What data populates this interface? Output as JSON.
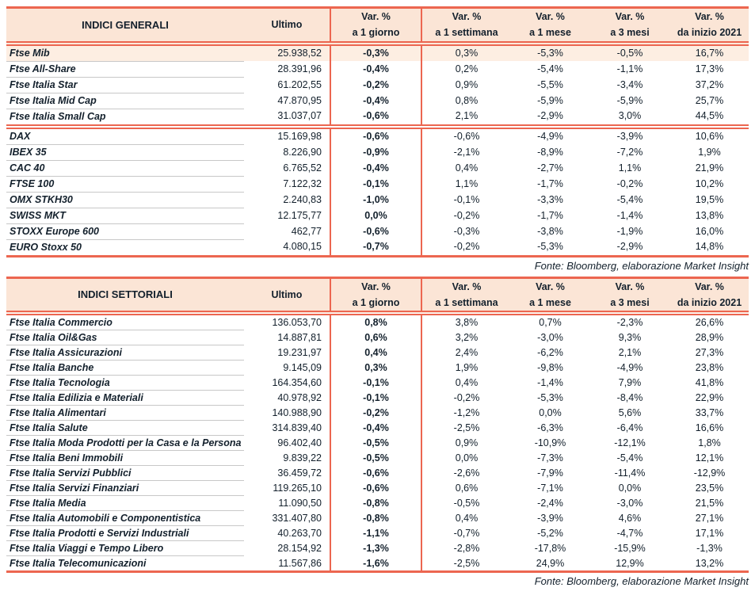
{
  "colors": {
    "accent_red": "#ec6650",
    "header_bg": "#fbe5d6",
    "highlight_row_bg": "#fdeee2",
    "separator_gray": "#c8c8c8",
    "text": "#13202c"
  },
  "columns": {
    "ultimo": "Ultimo",
    "var_label": "Var. %",
    "periods": [
      "a 1 giorno",
      "a 1 settimana",
      "a 1 mese",
      "a 3 mesi",
      "da inizio 2021"
    ]
  },
  "general": {
    "title": "INDICI GENERALI",
    "source": "Fonte: Bloomberg, elaborazione Market Insight",
    "rows": [
      {
        "name": "Ftse Mib",
        "ultimo": "25.938,52",
        "d1": "-0,3%",
        "w1": "0,3%",
        "m1": "-5,3%",
        "m3": "-0,5%",
        "ytd": "16,7%",
        "highlight": true
      },
      {
        "name": "Ftse All-Share",
        "ultimo": "28.391,96",
        "d1": "-0,4%",
        "w1": "0,2%",
        "m1": "-5,4%",
        "m3": "-1,1%",
        "ytd": "17,3%"
      },
      {
        "name": "Ftse Italia Star",
        "ultimo": "61.202,55",
        "d1": "-0,2%",
        "w1": "0,9%",
        "m1": "-5,5%",
        "m3": "-3,4%",
        "ytd": "37,2%"
      },
      {
        "name": "Ftse Italia Mid Cap",
        "ultimo": "47.870,95",
        "d1": "-0,4%",
        "w1": "0,8%",
        "m1": "-5,9%",
        "m3": "-5,9%",
        "ytd": "25,7%"
      },
      {
        "name": "Ftse Italia Small Cap",
        "ultimo": "31.037,07",
        "d1": "-0,6%",
        "w1": "2,1%",
        "m1": "-2,9%",
        "m3": "3,0%",
        "ytd": "44,5%"
      },
      {
        "name": "DAX",
        "ultimo": "15.169,98",
        "d1": "-0,6%",
        "w1": "-0,6%",
        "m1": "-4,9%",
        "m3": "-3,9%",
        "ytd": "10,6%",
        "block_start": true
      },
      {
        "name": "IBEX 35",
        "ultimo": "8.226,90",
        "d1": "-0,9%",
        "w1": "-2,1%",
        "m1": "-8,9%",
        "m3": "-7,2%",
        "ytd": "1,9%"
      },
      {
        "name": "CAC 40",
        "ultimo": "6.765,52",
        "d1": "-0,4%",
        "w1": "0,4%",
        "m1": "-2,7%",
        "m3": "1,1%",
        "ytd": "21,9%"
      },
      {
        "name": "FTSE 100",
        "ultimo": "7.122,32",
        "d1": "-0,1%",
        "w1": "1,1%",
        "m1": "-1,7%",
        "m3": "-0,2%",
        "ytd": "10,2%"
      },
      {
        "name": "OMX STKH30",
        "ultimo": "2.240,83",
        "d1": "-1,0%",
        "w1": "-0,1%",
        "m1": "-3,3%",
        "m3": "-5,4%",
        "ytd": "19,5%"
      },
      {
        "name": "SWISS MKT",
        "ultimo": "12.175,77",
        "d1": "0,0%",
        "w1": "-0,2%",
        "m1": "-1,7%",
        "m3": "-1,4%",
        "ytd": "13,8%"
      },
      {
        "name": "STOXX Europe 600",
        "ultimo": "462,77",
        "d1": "-0,6%",
        "w1": "-0,3%",
        "m1": "-3,8%",
        "m3": "-1,9%",
        "ytd": "16,0%"
      },
      {
        "name": "EURO Stoxx 50",
        "ultimo": "4.080,15",
        "d1": "-0,7%",
        "w1": "-0,2%",
        "m1": "-5,3%",
        "m3": "-2,9%",
        "ytd": "14,8%"
      }
    ]
  },
  "sector": {
    "title": "INDICI SETTORIALI",
    "source": "Fonte: Bloomberg, elaborazione Market Insight",
    "rows": [
      {
        "name": "Ftse Italia Commercio",
        "ultimo": "136.053,70",
        "d1": "0,8%",
        "w1": "3,8%",
        "m1": "0,7%",
        "m3": "-2,3%",
        "ytd": "26,6%"
      },
      {
        "name": "Ftse Italia Oil&Gas",
        "ultimo": "14.887,81",
        "d1": "0,6%",
        "w1": "3,2%",
        "m1": "-3,0%",
        "m3": "9,3%",
        "ytd": "28,9%"
      },
      {
        "name": "Ftse Italia Assicurazioni",
        "ultimo": "19.231,97",
        "d1": "0,4%",
        "w1": "2,4%",
        "m1": "-6,2%",
        "m3": "2,1%",
        "ytd": "27,3%"
      },
      {
        "name": "Ftse Italia Banche",
        "ultimo": "9.145,09",
        "d1": "0,3%",
        "w1": "1,9%",
        "m1": "-9,8%",
        "m3": "-4,9%",
        "ytd": "23,8%"
      },
      {
        "name": "Ftse Italia Tecnologia",
        "ultimo": "164.354,60",
        "d1": "-0,1%",
        "w1": "0,4%",
        "m1": "-1,4%",
        "m3": "7,9%",
        "ytd": "41,8%"
      },
      {
        "name": "Ftse Italia Edilizia e Materiali",
        "ultimo": "40.978,92",
        "d1": "-0,1%",
        "w1": "-0,2%",
        "m1": "-5,3%",
        "m3": "-8,4%",
        "ytd": "22,9%"
      },
      {
        "name": "Ftse Italia Alimentari",
        "ultimo": "140.988,90",
        "d1": "-0,2%",
        "w1": "-1,2%",
        "m1": "0,0%",
        "m3": "5,6%",
        "ytd": "33,7%"
      },
      {
        "name": "Ftse Italia Salute",
        "ultimo": "314.839,40",
        "d1": "-0,4%",
        "w1": "-2,5%",
        "m1": "-6,3%",
        "m3": "-6,4%",
        "ytd": "16,6%"
      },
      {
        "name": "Ftse Italia Moda Prodotti per la Casa e la Persona",
        "ultimo": "96.402,40",
        "d1": "-0,5%",
        "w1": "0,9%",
        "m1": "-10,9%",
        "m3": "-12,1%",
        "ytd": "1,8%"
      },
      {
        "name": "Ftse Italia Beni Immobili",
        "ultimo": "9.839,22",
        "d1": "-0,5%",
        "w1": "0,0%",
        "m1": "-7,3%",
        "m3": "-5,4%",
        "ytd": "12,1%"
      },
      {
        "name": "Ftse Italia Servizi Pubblici",
        "ultimo": "36.459,72",
        "d1": "-0,6%",
        "w1": "-2,6%",
        "m1": "-7,9%",
        "m3": "-11,4%",
        "ytd": "-12,9%"
      },
      {
        "name": "Ftse Italia Servizi Finanziari",
        "ultimo": "119.265,10",
        "d1": "-0,6%",
        "w1": "0,6%",
        "m1": "-7,1%",
        "m3": "0,0%",
        "ytd": "23,5%"
      },
      {
        "name": "Ftse Italia Media",
        "ultimo": "11.090,50",
        "d1": "-0,8%",
        "w1": "-0,5%",
        "m1": "-2,4%",
        "m3": "-3,0%",
        "ytd": "21,5%"
      },
      {
        "name": "Ftse Italia Automobili e Componentistica",
        "ultimo": "331.407,80",
        "d1": "-0,8%",
        "w1": "0,4%",
        "m1": "-3,9%",
        "m3": "4,6%",
        "ytd": "27,1%"
      },
      {
        "name": "Ftse Italia Prodotti e Servizi Industriali",
        "ultimo": "40.263,70",
        "d1": "-1,1%",
        "w1": "-0,7%",
        "m1": "-5,2%",
        "m3": "-4,7%",
        "ytd": "17,1%"
      },
      {
        "name": "Ftse Italia Viaggi e Tempo Libero",
        "ultimo": "28.154,92",
        "d1": "-1,3%",
        "w1": "-2,8%",
        "m1": "-17,8%",
        "m3": "-15,9%",
        "ytd": "-1,3%"
      },
      {
        "name": "Ftse Italia Telecomunicazioni",
        "ultimo": "11.567,86",
        "d1": "-1,6%",
        "w1": "-2,5%",
        "m1": "24,9%",
        "m3": "12,9%",
        "ytd": "13,2%"
      }
    ]
  }
}
